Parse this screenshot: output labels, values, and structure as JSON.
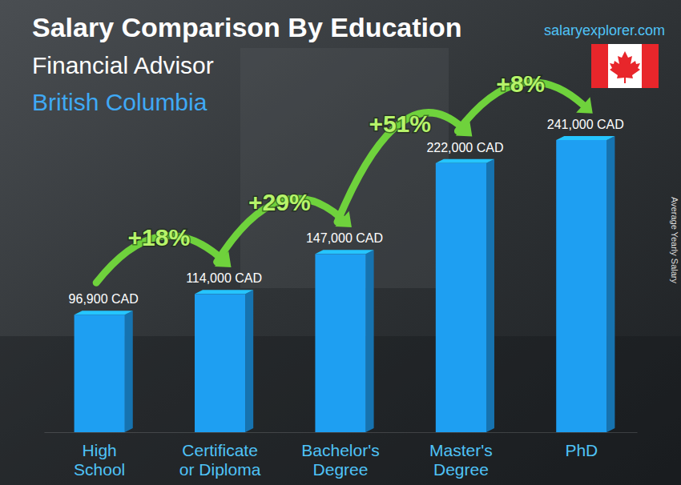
{
  "chart_data": {
    "type": "bar",
    "title": "Salary Comparison By Education",
    "subtitles": [
      "Financial Advisor",
      "British Columbia"
    ],
    "watermark": "salaryexplorer.com",
    "y_label": "Average Yearly Salary",
    "categories": [
      "High\nSchool",
      "Certificate\nor Diploma",
      "Bachelor's\nDegree",
      "Master's\nDegree",
      "PhD"
    ],
    "values": [
      96900,
      114000,
      147000,
      222000,
      241000
    ],
    "value_labels": [
      "96,900 CAD",
      "114,000 CAD",
      "147,000 CAD",
      "222,000 CAD",
      "241,000 CAD"
    ],
    "data_labels": true,
    "annotations": [
      "+18%",
      "+29%",
      "+51%",
      "+8%"
    ],
    "color": "#1e9ff2",
    "tick_labels": "x",
    "grid": false
  }
}
